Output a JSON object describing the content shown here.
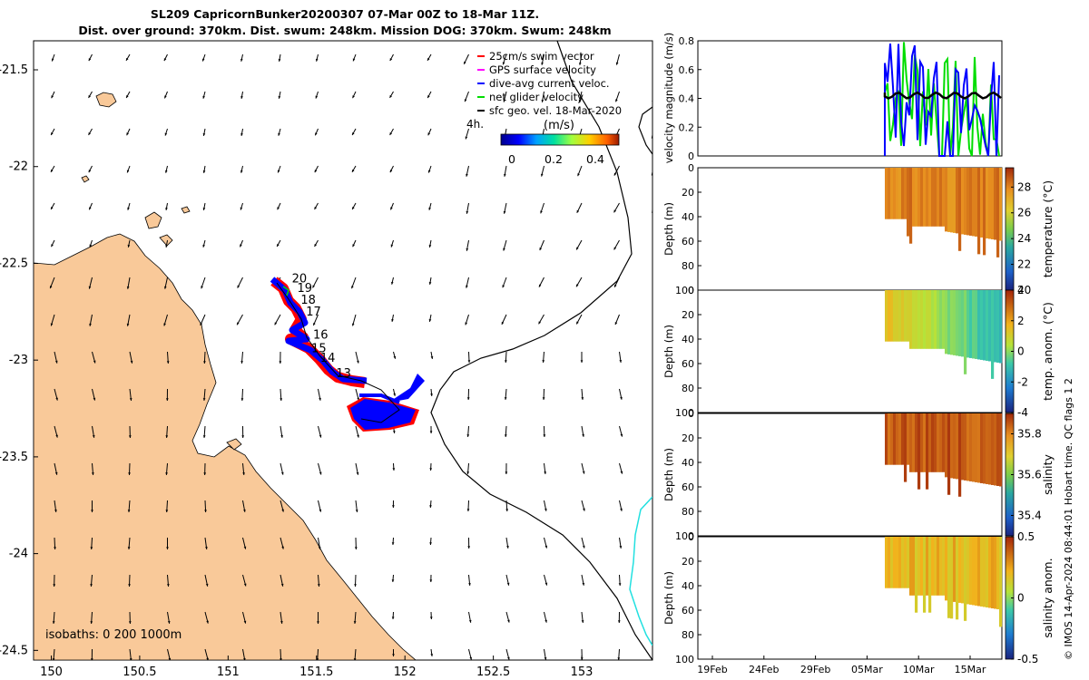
{
  "header": {
    "title_line1": "SL209 CapricornBunker20200307 07-Mar 00Z to 18-Mar 11Z.",
    "title_line2": "Dist. over ground: 370km. Dist. swum: 248km. Mission DOG: 370km. Swum: 248km"
  },
  "credit": "© IMOS 14-Apr-2024 08:44:01 Hobart time. QC flags 1  2",
  "colors": {
    "land": "#f9c999",
    "track": "#ff0000",
    "dac": "#0000ff",
    "net": "#00dd00",
    "geo": "#000000",
    "gps": "#ff00ff",
    "isobath_cyan": "#22e0e0"
  },
  "map": {
    "x_ticks": [
      "150",
      "150.5",
      "151",
      "151.5",
      "152",
      "152.5",
      "153"
    ],
    "y_ticks": [
      "-21.5",
      "-22",
      "-22.5",
      "-23",
      "-23.5",
      "-24",
      "-24.5"
    ],
    "isobaths_label": "isobaths: 0   200  1000m",
    "day_labels": [
      "20",
      "19",
      "18",
      "17",
      "16",
      "15",
      "14",
      "13"
    ],
    "legend": {
      "items": [
        "25cm/s swim vector",
        "GPS surface velocity",
        "dive-avg current veloc.",
        "net glider velocity",
        "sfc geo. vel. 18-Mar-2020"
      ],
      "time_label": "4h.",
      "units": "(m/s)",
      "ticks": [
        "0",
        "0.2",
        "0.4"
      ]
    }
  },
  "panels": {
    "velocity": {
      "ylabel": "velocity magnitude (m/s)",
      "ticks": [
        "0",
        "0.2",
        "0.4",
        "0.6",
        "0.8"
      ]
    },
    "temperature": {
      "ylabel": "Depth (m)",
      "cbar_label": "temperature (°C)",
      "cbar_ticks": [
        "20",
        "22",
        "24",
        "26",
        "28"
      ]
    },
    "temp_anom": {
      "ylabel": "Depth (m)",
      "cbar_label": "temp. anom. (°C)",
      "cbar_ticks": [
        "-4",
        "-2",
        "0",
        "2",
        "4"
      ]
    },
    "salinity": {
      "ylabel": "Depth (m)",
      "cbar_label": "salinity",
      "cbar_ticks": [
        "35.4",
        "35.6",
        "35.8"
      ]
    },
    "sal_anom": {
      "ylabel": "Depth (m)",
      "cbar_label": "salinity anom.",
      "cbar_ticks": [
        "-0.5",
        "0",
        "0.5"
      ]
    },
    "depth_ticks": [
      "0",
      "20",
      "40",
      "60",
      "80",
      "100"
    ],
    "time_ticks": [
      "19Feb",
      "24Feb",
      "29Feb",
      "05Mar",
      "10Mar",
      "15Mar"
    ]
  },
  "chart_data": [
    {
      "type": "scatter",
      "title": "SL209 CapricornBunker20200307 07-Mar 00Z to 18-Mar 11Z.",
      "xlim": [
        149.9,
        153.4
      ],
      "ylim": [
        -24.55,
        -21.35
      ],
      "glider_track_days": [
        {
          "day": "20",
          "lon": 151.33,
          "lat": -22.58
        },
        {
          "day": "19",
          "lon": 151.36,
          "lat": -22.63
        },
        {
          "day": "18",
          "lon": 151.38,
          "lat": -22.69
        },
        {
          "day": "17",
          "lon": 151.41,
          "lat": -22.75
        },
        {
          "day": "16",
          "lon": 151.45,
          "lat": -22.87
        },
        {
          "day": "15",
          "lon": 151.44,
          "lat": -22.94
        },
        {
          "day": "14",
          "lon": 151.49,
          "lat": -22.99
        },
        {
          "day": "13",
          "lon": 151.58,
          "lat": -23.07
        }
      ],
      "legend": [
        "25cm/s swim vector",
        "GPS surface velocity",
        "dive-avg current veloc.",
        "net glider velocity",
        "sfc geo. vel. 18-Mar-2020"
      ]
    },
    {
      "type": "line",
      "ylabel": "velocity magnitude (m/s)",
      "ylim": [
        0,
        0.8
      ],
      "x": [
        "19Feb",
        "24Feb",
        "29Feb",
        "05Mar",
        "10Mar",
        "15Mar"
      ],
      "series": [
        {
          "name": "net glider velocity",
          "values_range": [
            0,
            0.8
          ]
        },
        {
          "name": "dive-avg current veloc.",
          "values_range": [
            0,
            0.8
          ]
        },
        {
          "name": "sfc geo. vel. 18-Mar-2020",
          "mean": 0.42
        }
      ]
    },
    {
      "type": "heatmap",
      "ylabel": "Depth (m)",
      "colorbar": "temperature (°C)",
      "clim": [
        20,
        29.5
      ],
      "typical_value": 28
    },
    {
      "type": "heatmap",
      "ylabel": "Depth (m)",
      "colorbar": "temp. anom. (°C)",
      "clim": [
        -4,
        4
      ],
      "typical_value": 1.5
    },
    {
      "type": "heatmap",
      "ylabel": "Depth (m)",
      "colorbar": "salinity",
      "clim": [
        35.3,
        35.9
      ],
      "typical_value": 35.85
    },
    {
      "type": "heatmap",
      "ylabel": "Depth (m)",
      "colorbar": "salinity anom.",
      "clim": [
        -0.5,
        0.5
      ],
      "typical_value": 0.2
    }
  ]
}
